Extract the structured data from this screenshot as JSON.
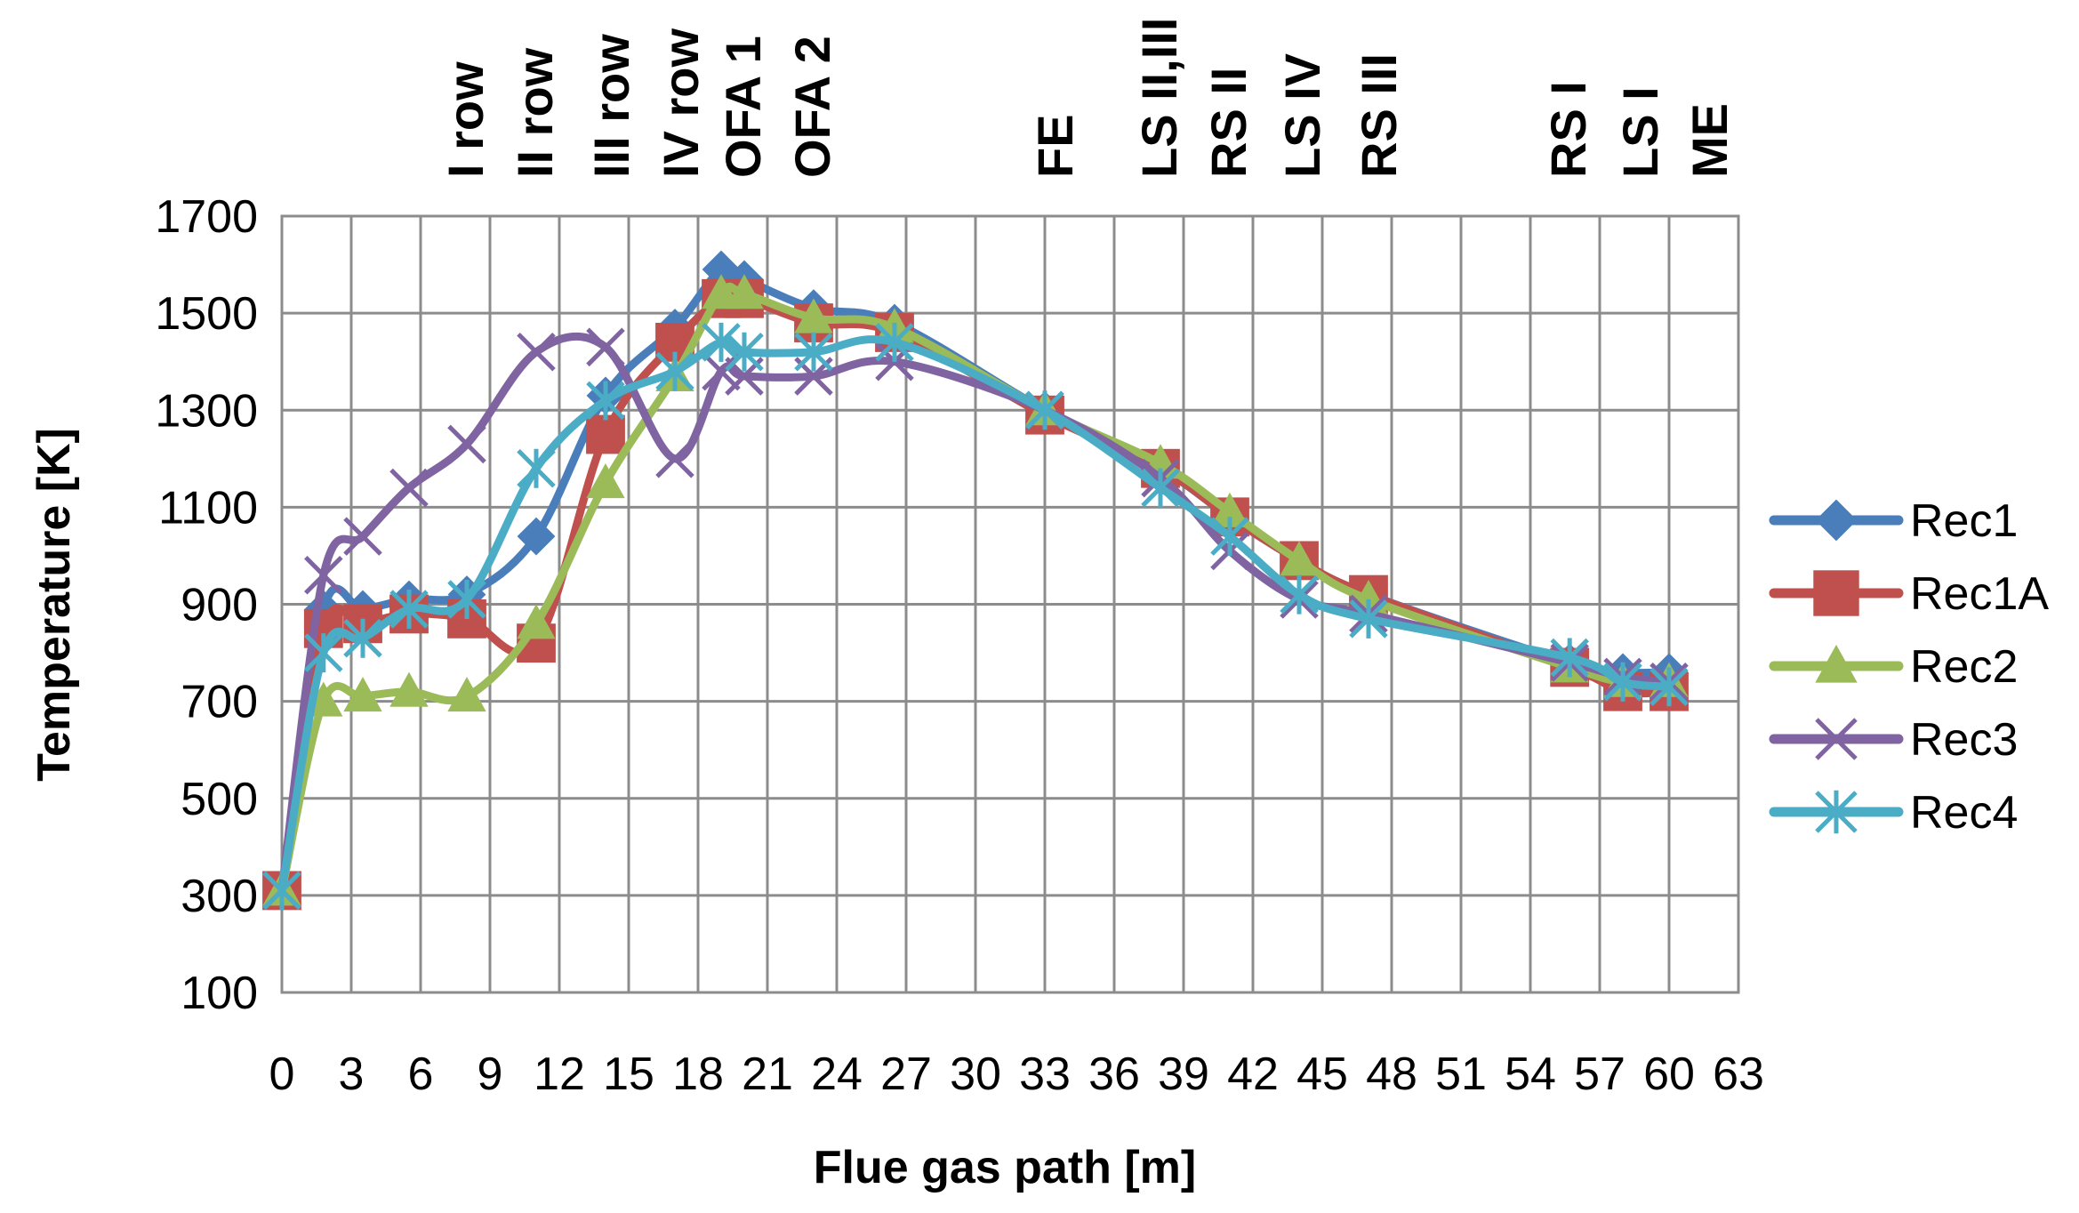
{
  "chart_data": {
    "type": "line",
    "title": "",
    "xlabel": "Flue gas path  [m]",
    "ylabel": "Temperature [K]",
    "xlim": [
      0,
      63
    ],
    "ylim": [
      100,
      1700
    ],
    "xticks": [
      0,
      3,
      6,
      9,
      12,
      15,
      18,
      21,
      24,
      27,
      30,
      33,
      36,
      39,
      42,
      45,
      48,
      51,
      54,
      57,
      60,
      63
    ],
    "yticks": [
      100,
      300,
      500,
      700,
      900,
      1100,
      1300,
      1500,
      1700
    ],
    "grid": true,
    "legend_position": "right",
    "top_labels": [
      {
        "text": "I row",
        "x": 8
      },
      {
        "text": "II row",
        "x": 11
      },
      {
        "text": "III row",
        "x": 14.3
      },
      {
        "text": "IV row",
        "x": 17.3
      },
      {
        "text": "OFA 1",
        "x": 20
      },
      {
        "text": "OFA 2",
        "x": 23
      },
      {
        "text": "FE",
        "x": 33.5
      },
      {
        "text": "LS II,III",
        "x": 38
      },
      {
        "text": "RS II",
        "x": 41
      },
      {
        "text": "LS IV",
        "x": 44.2
      },
      {
        "text": "RS III",
        "x": 47.5
      },
      {
        "text": "RS I",
        "x": 55.7
      },
      {
        "text": "LS I",
        "x": 58.8
      },
      {
        "text": "ME",
        "x": 61.8
      }
    ],
    "series": [
      {
        "name": "Rec1",
        "color": "#4A7EBB",
        "marker": "diamond",
        "x": [
          0,
          1.8,
          3.5,
          5.5,
          8,
          11,
          14,
          17,
          19,
          20,
          23,
          26.5,
          33,
          38,
          41,
          44,
          47,
          55.7,
          58,
          60
        ],
        "y": [
          310,
          890,
          890,
          910,
          920,
          1040,
          1330,
          1470,
          1590,
          1570,
          1510,
          1480,
          1300,
          1180,
          1080,
          990,
          920,
          780,
          760,
          760
        ]
      },
      {
        "name": "Rec1A",
        "color": "#C0504D",
        "marker": "square",
        "x": [
          0,
          1.8,
          3.5,
          5.5,
          8,
          11,
          14,
          17,
          19,
          20,
          23,
          26.5,
          33,
          38,
          41,
          44,
          47,
          55.7,
          58,
          60
        ],
        "y": [
          310,
          850,
          860,
          880,
          870,
          820,
          1250,
          1440,
          1530,
          1530,
          1480,
          1460,
          1290,
          1180,
          1080,
          990,
          920,
          770,
          720,
          720
        ]
      },
      {
        "name": "Rec2",
        "color": "#9BBB59",
        "marker": "triangle",
        "x": [
          0,
          1.8,
          3.5,
          5.5,
          8,
          11,
          14,
          17,
          19,
          20,
          23,
          26.5,
          33,
          38,
          41,
          44,
          47,
          55.7,
          58,
          60
        ],
        "y": [
          310,
          700,
          710,
          720,
          710,
          860,
          1150,
          1370,
          1540,
          1540,
          1490,
          1470,
          1300,
          1190,
          1090,
          990,
          910,
          770,
          740,
          740
        ]
      },
      {
        "name": "Rec3",
        "color": "#8064A2",
        "marker": "x",
        "x": [
          0,
          1.8,
          3.5,
          5.5,
          8,
          11,
          14,
          17,
          19,
          20,
          23,
          26.5,
          33,
          38,
          41,
          44,
          47,
          55.7,
          58,
          60
        ],
        "y": [
          310,
          960,
          1040,
          1140,
          1230,
          1420,
          1430,
          1200,
          1380,
          1370,
          1370,
          1400,
          1300,
          1160,
          1010,
          910,
          880,
          780,
          750,
          740
        ]
      },
      {
        "name": "Rec4",
        "color": "#4BACC6",
        "marker": "asterisk",
        "x": [
          0,
          1.8,
          3.5,
          5.5,
          8,
          11,
          14,
          17,
          19,
          20,
          23,
          26.5,
          33,
          38,
          41,
          44,
          47,
          55.7,
          58,
          60
        ],
        "y": [
          310,
          800,
          830,
          890,
          910,
          1180,
          1320,
          1380,
          1440,
          1420,
          1420,
          1440,
          1300,
          1140,
          1040,
          920,
          870,
          790,
          740,
          730
        ]
      }
    ]
  }
}
